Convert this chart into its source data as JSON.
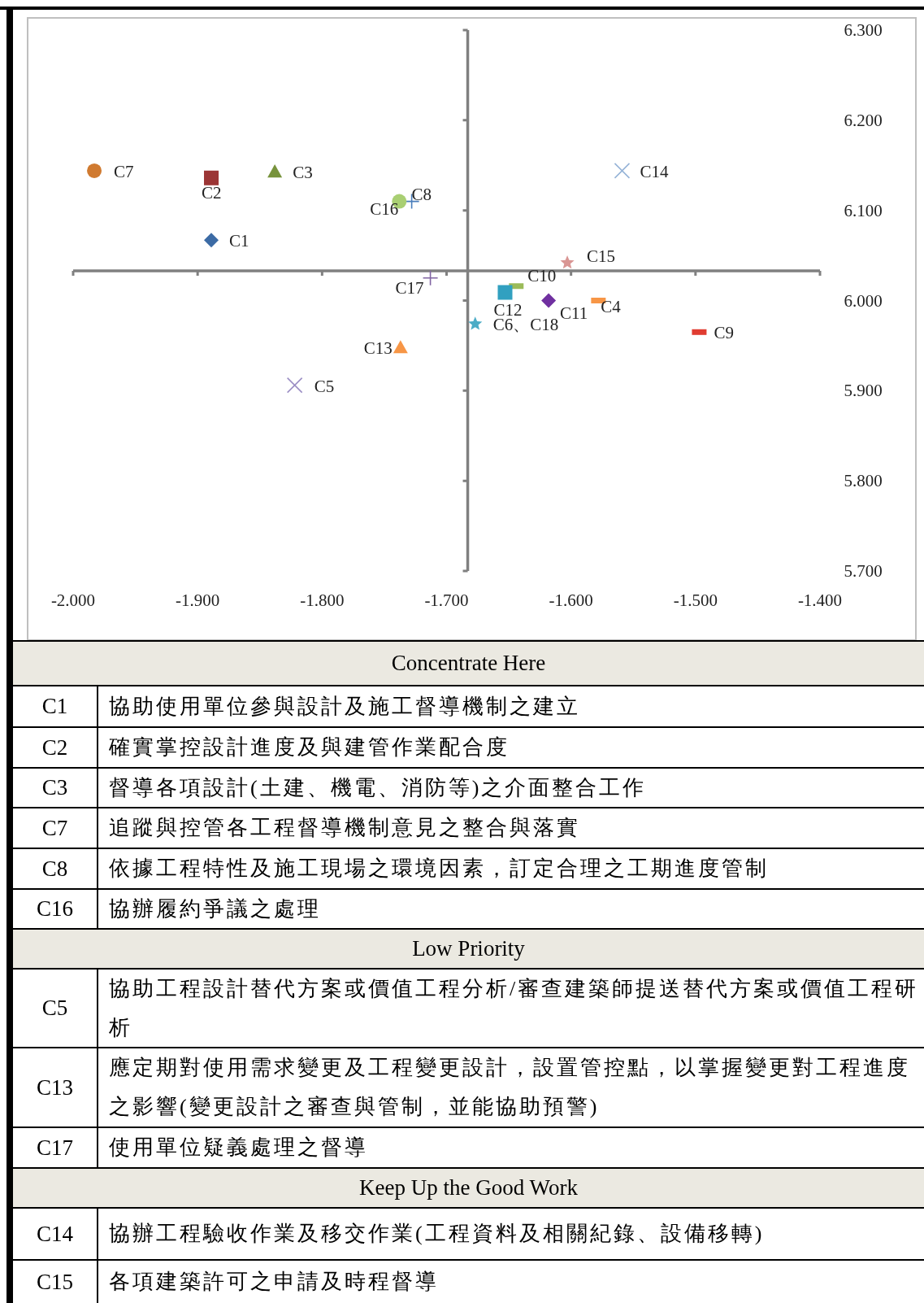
{
  "chart_data": {
    "type": "scatter",
    "xlim": [
      -2.0,
      -1.4
    ],
    "ylim": [
      5.7,
      6.3
    ],
    "xticks": [
      {
        "value": -2.0,
        "label": "-2.000"
      },
      {
        "value": -1.9,
        "label": "-1.900"
      },
      {
        "value": -1.8,
        "label": "-1.800"
      },
      {
        "value": -1.7,
        "label": "-1.700"
      },
      {
        "value": -1.6,
        "label": "-1.600"
      },
      {
        "value": -1.5,
        "label": "-1.500"
      },
      {
        "value": -1.4,
        "label": "-1.400"
      }
    ],
    "yticks": [
      {
        "value": 5.7,
        "label": "5.700"
      },
      {
        "value": 5.8,
        "label": "5.800"
      },
      {
        "value": 5.9,
        "label": "5.900"
      },
      {
        "value": 6.0,
        "label": "6.000"
      },
      {
        "value": 6.1,
        "label": "6.100"
      },
      {
        "value": 6.2,
        "label": "6.200"
      },
      {
        "value": 6.3,
        "label": "6.300"
      }
    ],
    "ref_lines": [
      {
        "axis": "x",
        "value": -1.683,
        "color": "#808080"
      },
      {
        "axis": "y",
        "value": 6.033,
        "color": "#808080"
      }
    ],
    "series": [
      {
        "name": "C7",
        "x": [
          -1.983
        ],
        "values": [
          6.144
        ],
        "color": "#d07a30",
        "marker": "circle"
      },
      {
        "name": "C2",
        "x": [
          -1.889
        ],
        "values": [
          6.136
        ],
        "color": "#9b3535",
        "marker": "square"
      },
      {
        "name": "C3",
        "x": [
          -1.838
        ],
        "values": [
          6.143
        ],
        "color": "#77933c",
        "marker": "triangle"
      },
      {
        "name": "C8",
        "x": [
          -1.728
        ],
        "values": [
          6.11
        ],
        "color": "#4a7ebb",
        "marker": "plus"
      },
      {
        "name": "C16",
        "x": [
          -1.738
        ],
        "values": [
          6.11
        ],
        "color": "#a9cf73",
        "marker": "circle"
      },
      {
        "name": "C1",
        "x": [
          -1.889
        ],
        "values": [
          6.067
        ],
        "color": "#3c6ba5",
        "marker": "diamond"
      },
      {
        "name": "C14",
        "x": [
          -1.559
        ],
        "values": [
          6.144
        ],
        "color": "#95b3d7",
        "marker": "cross"
      },
      {
        "name": "C15",
        "x": [
          -1.603
        ],
        "values": [
          6.042
        ],
        "color": "#d99694",
        "marker": "star"
      },
      {
        "name": "C10",
        "x": [
          -1.644
        ],
        "values": [
          6.016
        ],
        "color": "#9bbb59"
      },
      {
        "name": "C17",
        "x": [
          -1.713
        ],
        "values": [
          6.025
        ],
        "color": "#8064a2",
        "marker": "plus"
      },
      {
        "name": "C12",
        "x": [
          -1.653
        ],
        "values": [
          6.009
        ],
        "color": "#31a0c0",
        "marker": "square"
      },
      {
        "name": "C11",
        "x": [
          -1.618
        ],
        "values": [
          6.0
        ],
        "color": "#7030a0",
        "marker": "diamond"
      },
      {
        "name": "C4",
        "x": [
          -1.578
        ],
        "values": [
          6.0
        ],
        "color": "#f79646"
      },
      {
        "name": "C6、C18",
        "x": [
          -1.677
        ],
        "values": [
          5.974
        ],
        "color": "#4bacc6",
        "marker": "star"
      },
      {
        "name": "C9",
        "x": [
          -1.497
        ],
        "values": [
          5.965
        ],
        "color": "#e03c31"
      },
      {
        "name": "C13",
        "x": [
          -1.737
        ],
        "values": [
          5.948
        ],
        "color": "#f79646",
        "marker": "triangle"
      },
      {
        "name": "C5",
        "x": [
          -1.822
        ],
        "values": [
          5.906
        ],
        "color": "#9b8ec4",
        "marker": "cross"
      }
    ],
    "annotations": [
      "Concentrate Here",
      "C1",
      "協助使用單位參與設計及施工督導機制之建立",
      "C2",
      "確實掌控設計進度及與建管作業配合度",
      "C3",
      "督導各項設計(土建、機電、消防等)之介面整合工作",
      "C7",
      "追蹤與控管各工程督導機制意見之整合與落實",
      "C8",
      "依據工程特性及施工現場之環境因素，訂定合理之工期進度管制",
      "C16",
      "協辦履約爭議之處理",
      "Low Priority",
      "C5",
      "協助工程設計替代方案或價值工程分析/審查建築師提送替代方案或價值工程研析",
      "C13",
      "應定期對使用需求變更及工程變更設計，設置管控點，以掌握變更對工程進度之影響(變更設計之審查與管制，並能協助預警)",
      "C17",
      "使用單位疑義處理之督導",
      "Keep Up the Good Work",
      "C14",
      "協辦工程驗收作業及移交作業(工程資料及相關紀錄、設備移轉)",
      "C15",
      "各項建築許可之申請及時程督導"
    ]
  }
}
